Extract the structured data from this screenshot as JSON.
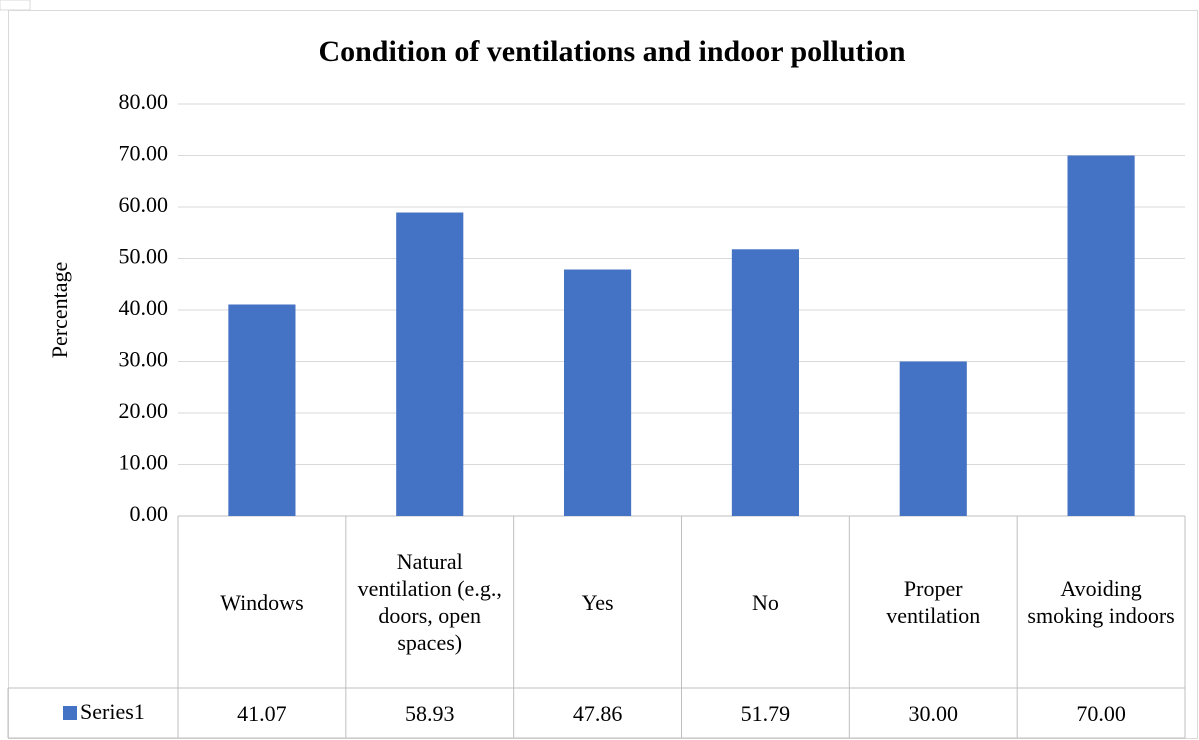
{
  "chart_data": {
    "type": "bar",
    "title": "Condition of ventilations and indoor pollution",
    "y_label": "Percentage",
    "categories": [
      "Windows",
      "Natural ventilation (e.g., doors, open spaces)",
      "Yes",
      "No",
      "Proper ventilation",
      "Avoiding smoking indoors"
    ],
    "series": [
      {
        "name": "Series1",
        "color": "#4472c4",
        "values": [
          41.07,
          58.93,
          47.86,
          51.79,
          30,
          70
        ],
        "value_labels": [
          "41.07",
          "58.93",
          "47.86",
          "51.79",
          "30.00",
          "70.00"
        ]
      }
    ],
    "ylim": [
      0,
      80
    ],
    "yticks": [
      {
        "value": 0,
        "label": "0.00"
      },
      {
        "value": 10,
        "label": "10.00"
      },
      {
        "value": 20,
        "label": "20.00"
      },
      {
        "value": 30,
        "label": "30.00"
      },
      {
        "value": 40,
        "label": "40.00"
      },
      {
        "value": 50,
        "label": "50.00"
      },
      {
        "value": 60,
        "label": "60.00"
      },
      {
        "value": 70,
        "label": "70.00"
      },
      {
        "value": 80,
        "label": "80.00"
      }
    ],
    "grid": true
  }
}
